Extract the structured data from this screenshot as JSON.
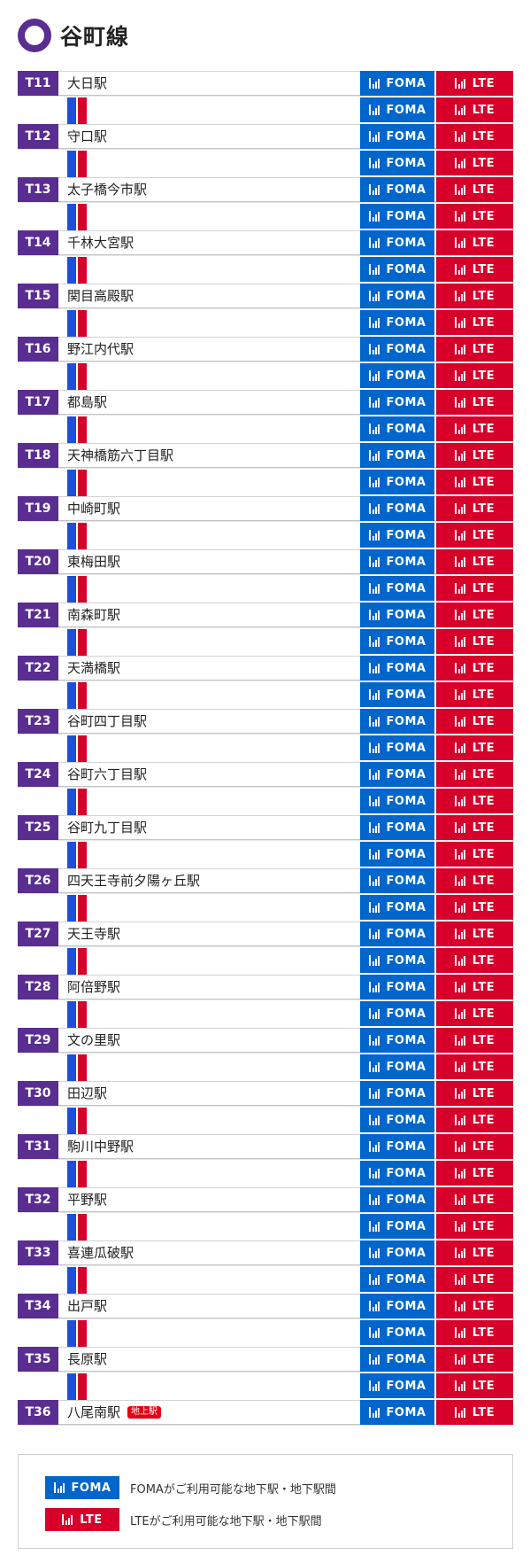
{
  "line": {
    "title": "谷町線",
    "icon": "circle-ring-icon",
    "color": "#5a2d91"
  },
  "labels": {
    "foma": "FOMA",
    "lte": "LTE"
  },
  "colors": {
    "foma": "#0066cc",
    "lte": "#d6002a",
    "rail_blue": "#1f4fd8",
    "rail_red": "#d6002a"
  },
  "stations": [
    {
      "code": "T11",
      "name": "大日駅",
      "badge": ""
    },
    {
      "code": "T12",
      "name": "守口駅",
      "badge": ""
    },
    {
      "code": "T13",
      "name": "太子橋今市駅",
      "badge": ""
    },
    {
      "code": "T14",
      "name": "千林大宮駅",
      "badge": ""
    },
    {
      "code": "T15",
      "name": "関目高殿駅",
      "badge": ""
    },
    {
      "code": "T16",
      "name": "野江内代駅",
      "badge": ""
    },
    {
      "code": "T17",
      "name": "都島駅",
      "badge": ""
    },
    {
      "code": "T18",
      "name": "天神橋筋六丁目駅",
      "badge": ""
    },
    {
      "code": "T19",
      "name": "中崎町駅",
      "badge": ""
    },
    {
      "code": "T20",
      "name": "東梅田駅",
      "badge": ""
    },
    {
      "code": "T21",
      "name": "南森町駅",
      "badge": ""
    },
    {
      "code": "T22",
      "name": "天満橋駅",
      "badge": ""
    },
    {
      "code": "T23",
      "name": "谷町四丁目駅",
      "badge": ""
    },
    {
      "code": "T24",
      "name": "谷町六丁目駅",
      "badge": ""
    },
    {
      "code": "T25",
      "name": "谷町九丁目駅",
      "badge": ""
    },
    {
      "code": "T26",
      "name": "四天王寺前夕陽ヶ丘駅",
      "badge": ""
    },
    {
      "code": "T27",
      "name": "天王寺駅",
      "badge": ""
    },
    {
      "code": "T28",
      "name": "阿倍野駅",
      "badge": ""
    },
    {
      "code": "T29",
      "name": "文の里駅",
      "badge": ""
    },
    {
      "code": "T30",
      "name": "田辺駅",
      "badge": ""
    },
    {
      "code": "T31",
      "name": "駒川中野駅",
      "badge": ""
    },
    {
      "code": "T32",
      "name": "平野駅",
      "badge": ""
    },
    {
      "code": "T33",
      "name": "喜連瓜破駅",
      "badge": ""
    },
    {
      "code": "T34",
      "name": "出戸駅",
      "badge": ""
    },
    {
      "code": "T35",
      "name": "長原駅",
      "badge": ""
    },
    {
      "code": "T36",
      "name": "八尾南駅",
      "badge": "地上駅"
    }
  ],
  "legend": {
    "foma_text": "FOMAがご利用可能な地下駅・地下駅間",
    "lte_text": "LTEがご利用可能な地下駅・地下駅間"
  }
}
